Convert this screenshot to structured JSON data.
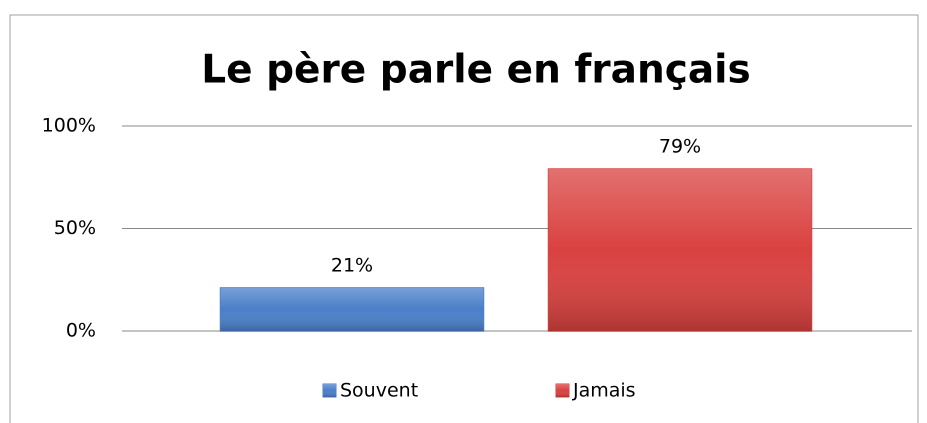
{
  "chart_data": {
    "type": "bar",
    "title": "Le père parle en français",
    "categories": [
      null
    ],
    "series": [
      {
        "name": "Souvent",
        "color": "#4a7fc9",
        "values": [
          21
        ],
        "value_labels": [
          "21%"
        ]
      },
      {
        "name": "Jamais",
        "color": "#d9413f",
        "values": [
          79
        ],
        "value_labels": [
          "79%"
        ]
      }
    ],
    "ylim": [
      0,
      100
    ],
    "yticks": [
      {
        "value": 0,
        "label": "0%"
      },
      {
        "value": 50,
        "label": "50%"
      },
      {
        "value": 100,
        "label": "100%"
      }
    ],
    "grid": true,
    "legend": "bottom"
  }
}
